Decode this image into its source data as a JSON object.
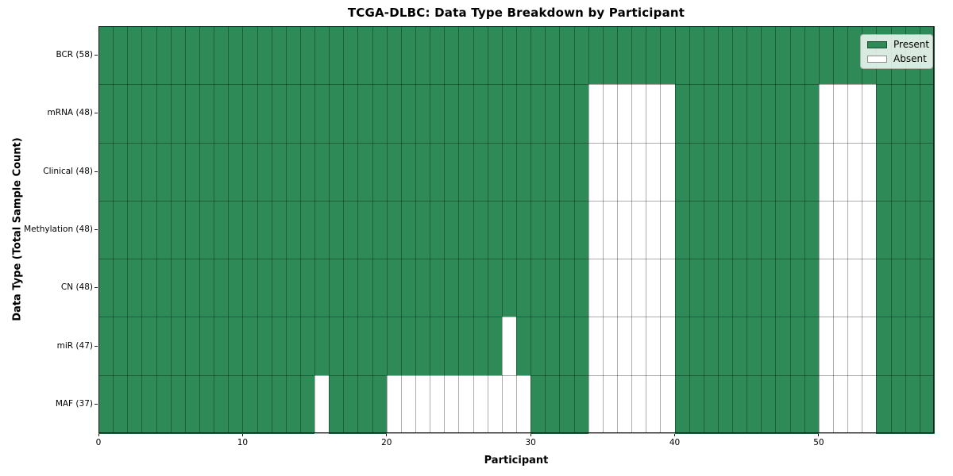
{
  "chart_data": {
    "type": "heatmap",
    "title": "TCGA-DLBC: Data Type Breakdown by Participant",
    "xlabel": "Participant",
    "ylabel": "Data Type (Total Sample Count)",
    "xlim": [
      0,
      58
    ],
    "n_participants": 58,
    "x_ticks": [
      0,
      10,
      20,
      30,
      40,
      50
    ],
    "grid": true,
    "legend_position": "upper right",
    "rows": [
      {
        "label": "BCR (58)",
        "present_count": 58,
        "absent": []
      },
      {
        "label": "mRNA (48)",
        "present_count": 48,
        "absent": [
          34,
          35,
          36,
          37,
          38,
          39,
          50,
          51,
          52,
          53
        ]
      },
      {
        "label": "Clinical (48)",
        "present_count": 48,
        "absent": [
          34,
          35,
          36,
          37,
          38,
          39,
          50,
          51,
          52,
          53
        ]
      },
      {
        "label": "Methylation (48)",
        "present_count": 48,
        "absent": [
          34,
          35,
          36,
          37,
          38,
          39,
          50,
          51,
          52,
          53
        ]
      },
      {
        "label": "CN (48)",
        "present_count": 48,
        "absent": [
          34,
          35,
          36,
          37,
          38,
          39,
          50,
          51,
          52,
          53
        ]
      },
      {
        "label": "miR (47)",
        "present_count": 47,
        "absent": [
          28,
          34,
          35,
          36,
          37,
          38,
          39,
          50,
          51,
          52,
          53
        ]
      },
      {
        "label": "MAF (37)",
        "present_count": 37,
        "absent": [
          15,
          20,
          21,
          22,
          23,
          24,
          25,
          26,
          27,
          28,
          29,
          34,
          35,
          36,
          37,
          38,
          39,
          50,
          51,
          52,
          53
        ]
      }
    ],
    "legend": [
      {
        "label": "Present",
        "color": "#2e8b57"
      },
      {
        "label": "Absent",
        "color": "#ffffff"
      }
    ],
    "colors": {
      "present": "#2e8b57",
      "absent": "#ffffff",
      "grid_line": "rgba(0,0,0,0.32)"
    }
  }
}
